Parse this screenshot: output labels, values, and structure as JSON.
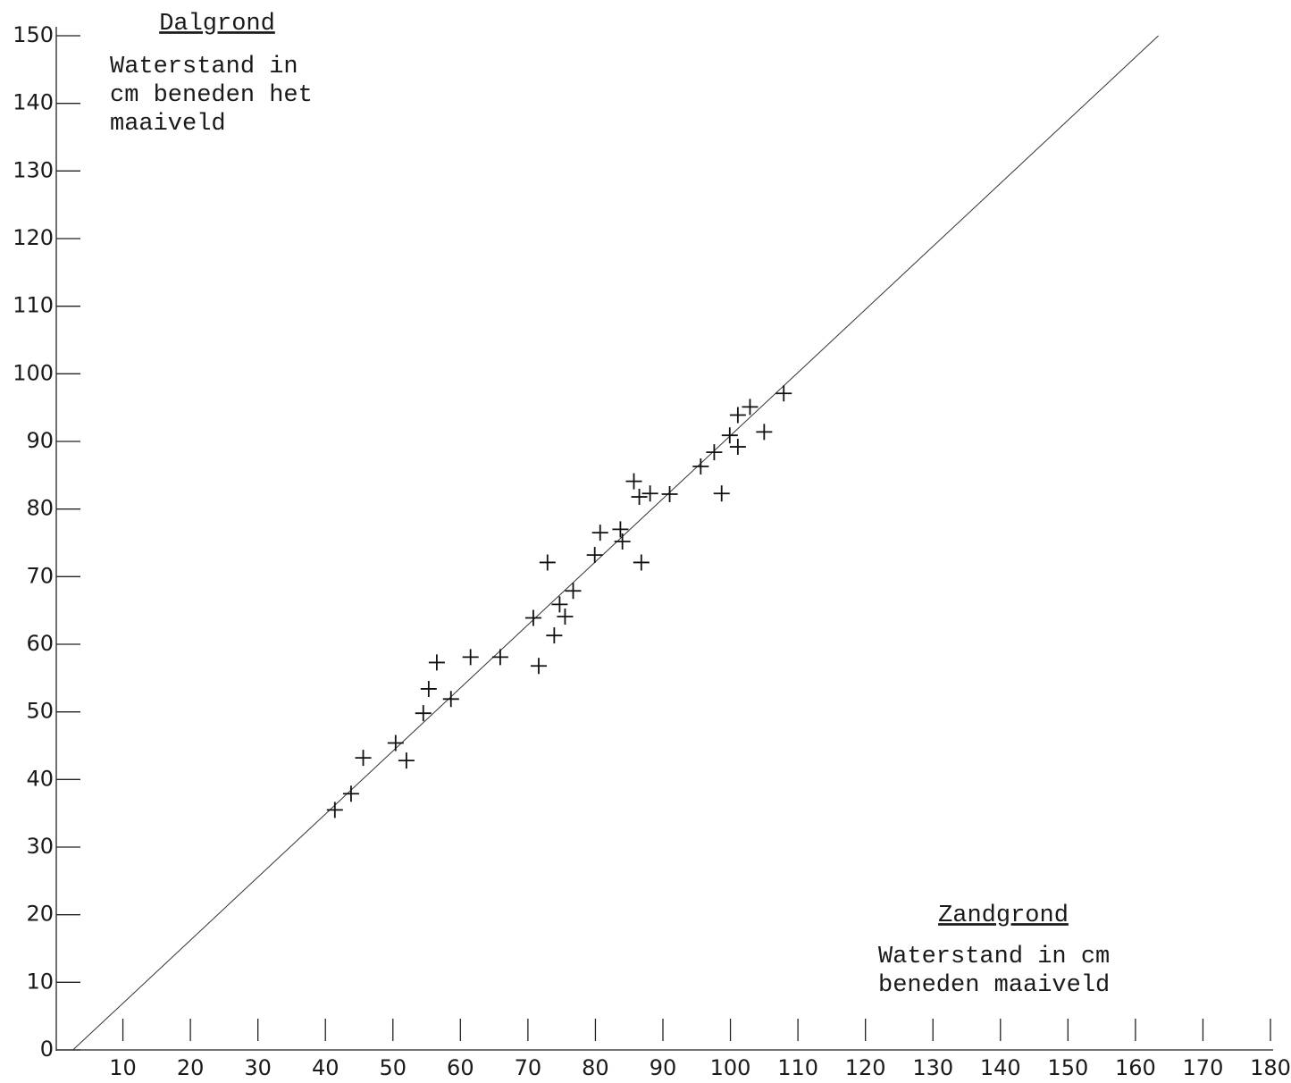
{
  "chart_data": {
    "type": "scatter",
    "annotations": {
      "top_left": {
        "heading": "Dalgrond",
        "lines": [
          "Waterstand in",
          "cm beneden het",
          "maaiveld"
        ]
      },
      "bottom_right": {
        "heading": "Zandgrond",
        "lines": [
          "Waterstand in cm",
          "beneden maaiveld"
        ]
      }
    },
    "x": [
      41.4,
      43.8,
      45.6,
      50.4,
      52.0,
      54.5,
      55.3,
      56.5,
      58.6,
      61.5,
      65.9,
      70.8,
      71.6,
      72.9,
      73.9,
      74.7,
      75.5,
      76.7,
      79.9,
      80.7,
      83.7,
      84.0,
      85.7,
      86.5,
      86.8,
      88.1,
      91.0,
      95.6,
      97.6,
      98.7,
      99.9,
      101.1,
      101.1,
      102.9,
      105.0,
      107.9
    ],
    "values": [
      35.5,
      37.9,
      43.2,
      45.4,
      42.8,
      49.8,
      53.4,
      57.3,
      51.9,
      58.1,
      58.1,
      63.9,
      56.8,
      72.1,
      61.3,
      65.9,
      64.1,
      67.9,
      73.2,
      76.5,
      77.0,
      75.2,
      84.1,
      81.8,
      72.1,
      82.3,
      82.2,
      86.3,
      88.4,
      82.3,
      90.9,
      89.2,
      93.9,
      95.1,
      91.4,
      97.1
    ],
    "color": "#111111",
    "fit_line": {
      "x": [
        2.6,
        163.4
      ],
      "y": [
        0,
        150
      ],
      "color": "#333333"
    },
    "xlim": [
      0,
      180
    ],
    "ylim": [
      0,
      150
    ],
    "xticks": [
      10,
      20,
      30,
      40,
      50,
      60,
      70,
      80,
      90,
      100,
      110,
      120,
      130,
      140,
      150,
      160,
      170,
      180
    ],
    "yticks": [
      0,
      10,
      20,
      30,
      40,
      50,
      60,
      70,
      80,
      90,
      100,
      110,
      120,
      130,
      140,
      150
    ]
  }
}
